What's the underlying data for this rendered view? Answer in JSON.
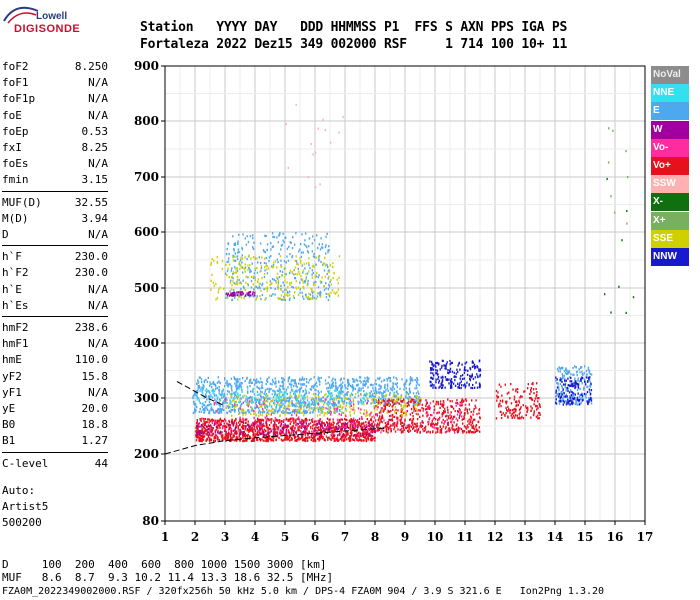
{
  "logo": {
    "line1": "Lowell",
    "line2": "DIGISONDE"
  },
  "header": {
    "row1": "Station   YYYY DAY   DDD HHMMSS P1  FFS S AXN PPS IGA PS",
    "row2": "Fortaleza 2022 Dez15 349 002000 RSF     1 714 100 10+ 11"
  },
  "params": [
    {
      "k": "foF2",
      "v": "8.250"
    },
    {
      "k": "foF1",
      "v": "N/A"
    },
    {
      "k": "foF1p",
      "v": "N/A"
    },
    {
      "k": "foE",
      "v": "N/A"
    },
    {
      "k": "foEp",
      "v": "0.53"
    },
    {
      "k": "fxI",
      "v": "8.25"
    },
    {
      "k": "foEs",
      "v": "N/A"
    },
    {
      "k": "fmin",
      "v": "3.15"
    },
    {
      "k": "MUF(D)",
      "v": "32.55"
    },
    {
      "k": "M(D)",
      "v": "3.94"
    },
    {
      "k": "D",
      "v": "N/A"
    },
    {
      "k": "h`F",
      "v": "230.0"
    },
    {
      "k": "h`F2",
      "v": "230.0"
    },
    {
      "k": "h`E",
      "v": "N/A"
    },
    {
      "k": "h`Es",
      "v": "N/A"
    },
    {
      "k": "hmF2",
      "v": "238.6"
    },
    {
      "k": "hmF1",
      "v": "N/A"
    },
    {
      "k": "hmE",
      "v": "110.0"
    },
    {
      "k": "yF2",
      "v": "15.8"
    },
    {
      "k": "yF1",
      "v": "N/A"
    },
    {
      "k": "yE",
      "v": "20.0"
    },
    {
      "k": "B0",
      "v": "18.8"
    },
    {
      "k": "B1",
      "v": "1.27"
    },
    {
      "k": "C-level",
      "v": "44"
    }
  ],
  "auto": {
    "line1": "Auto:",
    "line2": "Artist5",
    "line3": "500200"
  },
  "legend": [
    {
      "label": "NoVal",
      "color": "#8c8c8c"
    },
    {
      "label": "NNE",
      "color": "#33e0f0"
    },
    {
      "label": "E",
      "color": "#4ea8ee"
    },
    {
      "label": "W",
      "color": "#a000a0"
    },
    {
      "label": "Vo-",
      "color": "#ff2ca0"
    },
    {
      "label": "Vo+",
      "color": "#e8101c"
    },
    {
      "label": "SSW",
      "color": "#ffb0b0"
    },
    {
      "label": "X-",
      "color": "#107010"
    },
    {
      "label": "X+",
      "color": "#78b060"
    },
    {
      "label": "SSE",
      "color": "#d0d000"
    },
    {
      "label": "NNW",
      "color": "#1818d0"
    }
  ],
  "bottom": {
    "d_line": "D     100  200  400  600  800 1000 1500 3000 [km]",
    "muf_line": "MUF   8.6  8.7  9.3 10.2 11.4 13.3 18.6 32.5 [MHz]",
    "footer": "FZA0M_2022349002000.RSF / 320fx256h 50 kHz 5.0 km / DPS-4 FZA0M 904 / 3.9 S 321.6 E   Ion2Png 1.3.20"
  },
  "chart_data": {
    "type": "scatter",
    "xlim": [
      1,
      17
    ],
    "ylim": [
      80,
      900
    ],
    "xticks": [
      "1",
      "2",
      "3",
      "4",
      "5",
      "6",
      "7",
      "8",
      "9",
      "10",
      "11",
      "12",
      "13",
      "14",
      "15",
      "16",
      "17"
    ],
    "yticks": [
      "80",
      "200",
      "300",
      "400",
      "500",
      "600",
      "700",
      "800",
      "900"
    ],
    "xlabel": "",
    "ylabel": "",
    "grid": true,
    "legend_position": "right",
    "clusters": [
      {
        "name": "E",
        "color": "#4ea8ee",
        "x": [
          1.9,
          7.0
        ],
        "y": [
          275,
          340
        ],
        "count": 900
      },
      {
        "name": "E",
        "color": "#4ea8ee",
        "x": [
          3.0,
          6.5
        ],
        "y": [
          480,
          600
        ],
        "count": 350
      },
      {
        "name": "E",
        "color": "#4ea8ee",
        "x": [
          7.0,
          9.5
        ],
        "y": [
          290,
          340
        ],
        "count": 300
      },
      {
        "name": "E",
        "color": "#4ea8ee",
        "x": [
          14.0,
          15.2
        ],
        "y": [
          290,
          360
        ],
        "count": 180
      },
      {
        "name": "Vo+",
        "color": "#e8101c",
        "x": [
          2.0,
          8.0
        ],
        "y": [
          225,
          265
        ],
        "count": 1200
      },
      {
        "name": "Vo+",
        "color": "#e8101c",
        "x": [
          8.0,
          11.5
        ],
        "y": [
          240,
          300
        ],
        "count": 500
      },
      {
        "name": "Vo+",
        "color": "#e8101c",
        "x": [
          12.0,
          13.5
        ],
        "y": [
          265,
          330
        ],
        "count": 150
      },
      {
        "name": "SSE",
        "color": "#d0d000",
        "x": [
          2.5,
          6.8
        ],
        "y": [
          480,
          560
        ],
        "count": 250
      },
      {
        "name": "SSE",
        "color": "#d0d000",
        "x": [
          3.0,
          9.5
        ],
        "y": [
          270,
          310
        ],
        "count": 250
      },
      {
        "name": "NNW",
        "color": "#1818d0",
        "x": [
          9.8,
          11.5
        ],
        "y": [
          320,
          370
        ],
        "count": 200
      },
      {
        "name": "NNW",
        "color": "#1818d0",
        "x": [
          14.0,
          15.2
        ],
        "y": [
          290,
          340
        ],
        "count": 120
      },
      {
        "name": "W",
        "color": "#a000a0",
        "x": [
          3.0,
          4.0
        ],
        "y": [
          488,
          495
        ],
        "count": 40
      },
      {
        "name": "W",
        "color": "#a000a0",
        "x": [
          2.0,
          8.0
        ],
        "y": [
          235,
          260
        ],
        "count": 150
      },
      {
        "name": "Vo-",
        "color": "#ff2ca0",
        "x": [
          2.5,
          11.0
        ],
        "y": [
          240,
          300
        ],
        "count": 200
      },
      {
        "name": "NNE",
        "color": "#33e0f0",
        "x": [
          2.0,
          8.0
        ],
        "y": [
          290,
          320
        ],
        "count": 120
      },
      {
        "name": "X-",
        "color": "#107010",
        "x": [
          15.4,
          16.6
        ],
        "y": [
          400,
          730
        ],
        "count": 8
      },
      {
        "name": "X+",
        "color": "#78b060",
        "x": [
          15.6,
          16.5
        ],
        "y": [
          600,
          800
        ],
        "count": 8
      },
      {
        "name": "SSW",
        "color": "#ffb0b0",
        "x": [
          5.0,
          7.0
        ],
        "y": [
          680,
          840
        ],
        "count": 15
      }
    ],
    "trace_curve": {
      "x": [
        1.0,
        2.0,
        3.0,
        4.0,
        5.0,
        6.0,
        7.0,
        8.0,
        8.3
      ],
      "y": [
        200,
        215,
        224,
        229,
        233,
        237,
        241,
        245,
        246
      ]
    },
    "trace_curve_2": {
      "x": [
        1.4,
        2.0,
        2.4,
        3.0
      ],
      "y": [
        330,
        312,
        300,
        286
      ]
    }
  }
}
